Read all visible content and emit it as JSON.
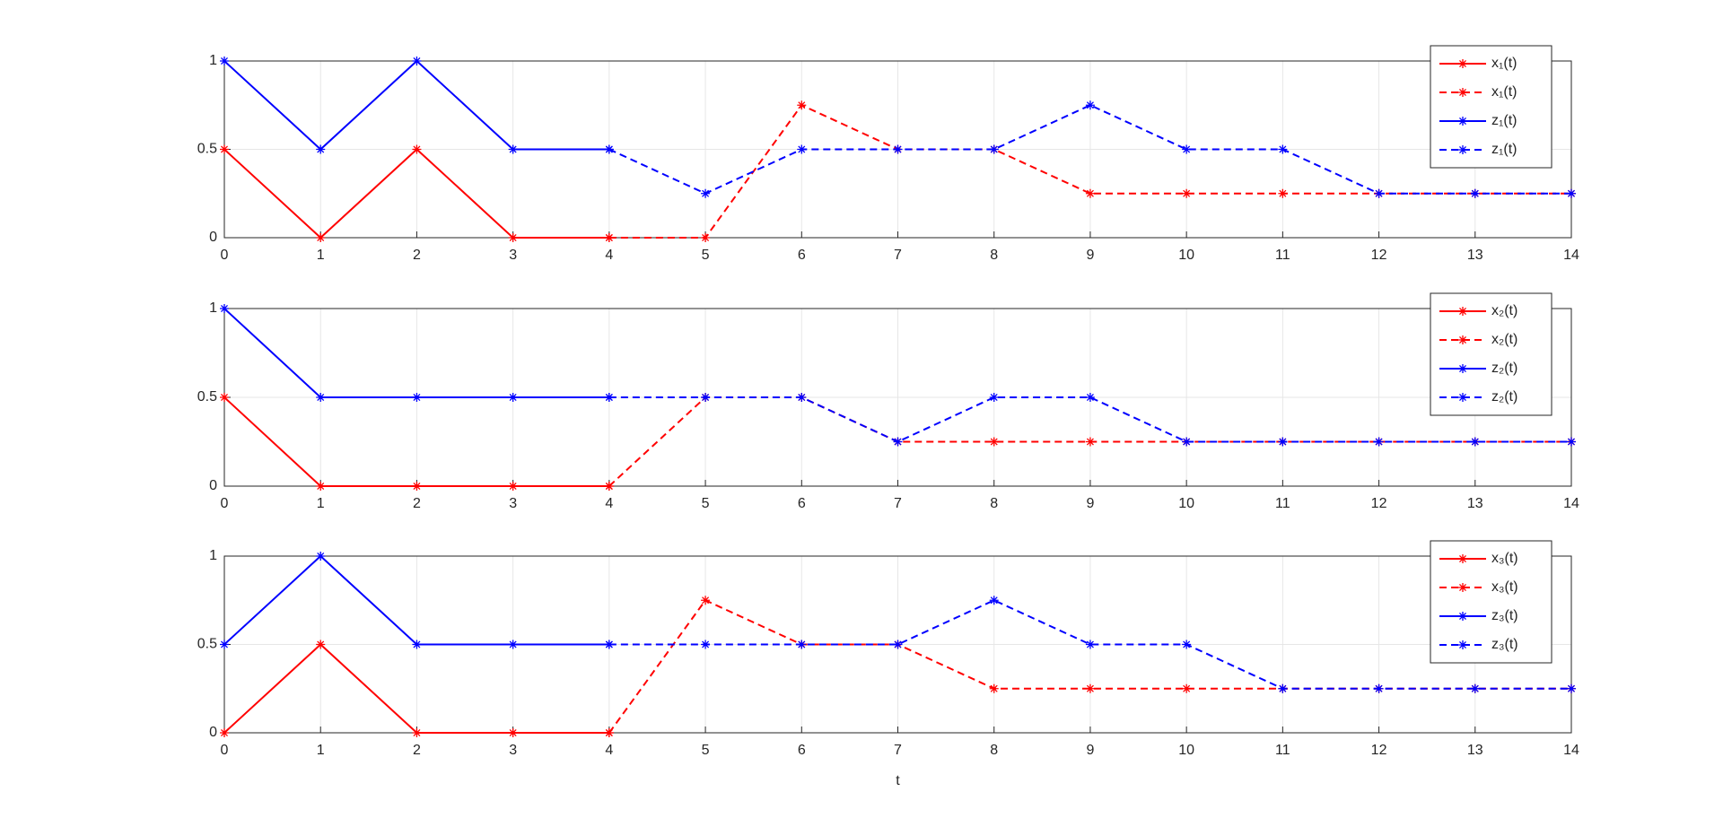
{
  "chart_data": [
    {
      "type": "line",
      "x": [
        0,
        1,
        2,
        3,
        4,
        5,
        6,
        7,
        8,
        9,
        10,
        11,
        12,
        13,
        14
      ],
      "xlim": [
        0,
        14
      ],
      "ylim": [
        0,
        1
      ],
      "xticks": [
        0,
        1,
        2,
        3,
        4,
        5,
        6,
        7,
        8,
        9,
        10,
        11,
        12,
        13,
        14
      ],
      "yticks": [
        0,
        0.5,
        1
      ],
      "grid": true,
      "legend": "northeast",
      "marker": "*",
      "series": [
        {
          "name": "x₁(t)",
          "color": "#ff0000",
          "style": "solid",
          "values": [
            0.5,
            0,
            0.5,
            0,
            0,
            null,
            null,
            null,
            null,
            null,
            null,
            null,
            null,
            null,
            null
          ]
        },
        {
          "name": "x₁(t)",
          "color": "#ff0000",
          "style": "dashed",
          "values": [
            null,
            null,
            null,
            null,
            0,
            0,
            0.75,
            0.5,
            0.5,
            0.25,
            0.25,
            0.25,
            0.25,
            0.25,
            0.25
          ]
        },
        {
          "name": "z₁(t)",
          "color": "#0000ff",
          "style": "solid",
          "values": [
            1,
            0.5,
            1,
            0.5,
            0.5,
            null,
            null,
            null,
            null,
            null,
            null,
            null,
            null,
            null,
            null
          ]
        },
        {
          "name": "z₁(t)",
          "color": "#0000ff",
          "style": "dashed",
          "values": [
            null,
            null,
            null,
            null,
            0.5,
            0.25,
            0.5,
            0.5,
            0.5,
            0.75,
            0.5,
            0.5,
            0.25,
            0.25,
            0.25
          ]
        }
      ]
    },
    {
      "type": "line",
      "x": [
        0,
        1,
        2,
        3,
        4,
        5,
        6,
        7,
        8,
        9,
        10,
        11,
        12,
        13,
        14
      ],
      "xlim": [
        0,
        14
      ],
      "ylim": [
        0,
        1
      ],
      "xticks": [
        0,
        1,
        2,
        3,
        4,
        5,
        6,
        7,
        8,
        9,
        10,
        11,
        12,
        13,
        14
      ],
      "yticks": [
        0,
        0.5,
        1
      ],
      "grid": true,
      "legend": "northeast",
      "marker": "*",
      "series": [
        {
          "name": "x₂(t)",
          "color": "#ff0000",
          "style": "solid",
          "values": [
            0.5,
            0,
            0,
            0,
            0,
            null,
            null,
            null,
            null,
            null,
            null,
            null,
            null,
            null,
            null
          ]
        },
        {
          "name": "x₂(t)",
          "color": "#ff0000",
          "style": "dashed",
          "values": [
            null,
            null,
            null,
            null,
            0,
            0.5,
            0.5,
            0.25,
            0.25,
            0.25,
            0.25,
            0.25,
            0.25,
            0.25,
            0.25
          ]
        },
        {
          "name": "z₂(t)",
          "color": "#0000ff",
          "style": "solid",
          "values": [
            1,
            0.5,
            0.5,
            0.5,
            0.5,
            null,
            null,
            null,
            null,
            null,
            null,
            null,
            null,
            null,
            null
          ]
        },
        {
          "name": "z₂(t)",
          "color": "#0000ff",
          "style": "dashed",
          "values": [
            null,
            null,
            null,
            null,
            0.5,
            0.5,
            0.5,
            0.25,
            0.5,
            0.5,
            0.25,
            0.25,
            0.25,
            0.25,
            0.25
          ]
        }
      ]
    },
    {
      "type": "line",
      "x": [
        0,
        1,
        2,
        3,
        4,
        5,
        6,
        7,
        8,
        9,
        10,
        11,
        12,
        13,
        14
      ],
      "xlim": [
        0,
        14
      ],
      "ylim": [
        0,
        1
      ],
      "xticks": [
        0,
        1,
        2,
        3,
        4,
        5,
        6,
        7,
        8,
        9,
        10,
        11,
        12,
        13,
        14
      ],
      "yticks": [
        0,
        0.5,
        1
      ],
      "grid": true,
      "legend": "northeast",
      "marker": "*",
      "xlabel": "t",
      "series": [
        {
          "name": "x₃(t)",
          "color": "#ff0000",
          "style": "solid",
          "values": [
            0,
            0.5,
            0,
            0,
            0,
            null,
            null,
            null,
            null,
            null,
            null,
            null,
            null,
            null,
            null
          ]
        },
        {
          "name": "x₃(t)",
          "color": "#ff0000",
          "style": "dashed",
          "values": [
            null,
            null,
            null,
            null,
            0,
            0.75,
            0.5,
            0.5,
            0.25,
            0.25,
            0.25,
            0.25,
            0.25,
            0.25,
            0.25
          ]
        },
        {
          "name": "z₃(t)",
          "color": "#0000ff",
          "style": "solid",
          "values": [
            0.5,
            1,
            0.5,
            0.5,
            0.5,
            null,
            null,
            null,
            null,
            null,
            null,
            null,
            null,
            null,
            null
          ]
        },
        {
          "name": "z₃(t)",
          "color": "#0000ff",
          "style": "dashed",
          "values": [
            null,
            null,
            null,
            null,
            0.5,
            0.5,
            0.5,
            0.5,
            0.75,
            0.5,
            0.5,
            0.25,
            0.25,
            0.25,
            0.25
          ]
        }
      ]
    }
  ]
}
